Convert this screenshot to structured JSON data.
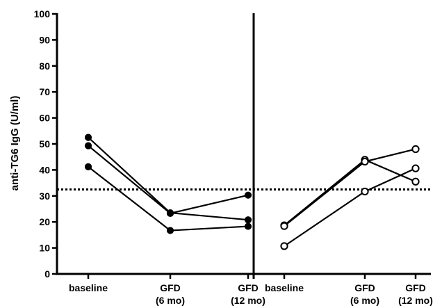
{
  "chart_data": {
    "type": "line",
    "ylabel": "anti-TG6 IgG (U/ml)",
    "ylim": [
      0,
      100
    ],
    "yticks": [
      0,
      10,
      20,
      30,
      40,
      50,
      60,
      70,
      80,
      90,
      100
    ],
    "threshold": 32.5,
    "grid": false,
    "panels": [
      {
        "categories": [
          {
            "line1": "baseline",
            "line2": ""
          },
          {
            "line1": "GFD",
            "line2": "(6 mo)"
          },
          {
            "line1": "GFD",
            "line2": "(12 mo)"
          }
        ],
        "marker": "filled",
        "series": [
          {
            "values": [
              52.5,
              23.5,
              20.8
            ]
          },
          {
            "values": [
              49.3,
              23.3,
              30.3
            ]
          },
          {
            "values": [
              41.2,
              16.7,
              18.3
            ]
          }
        ]
      },
      {
        "categories": [
          {
            "line1": "baseline",
            "line2": ""
          },
          {
            "line1": "GFD",
            "line2": "(6 mo)"
          },
          {
            "line1": "GFD",
            "line2": "(12 mo)"
          }
        ],
        "marker": "open",
        "series": [
          {
            "values": [
              18.7,
              43.9,
              35.5
            ]
          },
          {
            "values": [
              18.4,
              43.2,
              48.0
            ]
          },
          {
            "values": [
              10.7,
              31.7,
              40.6
            ]
          }
        ]
      }
    ]
  }
}
